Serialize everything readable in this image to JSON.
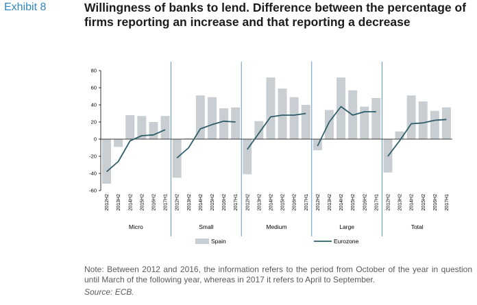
{
  "header": {
    "exhibit": "Exhibit 8",
    "title": "Willingness of banks to lend. Difference between the percentage of firms reporting an increase and that reporting a decrease"
  },
  "footer": {
    "note": "Note: Between 2012 and 2016, the information refers to the period from October of the year in question until March of the following year, whereas in 2017 it refers to April to September.",
    "source": "Source: ECB."
  },
  "colors": {
    "bar": "#c9ced2",
    "line": "#2d5d69",
    "divider": "#3a7dbd",
    "axis": "#000000"
  },
  "chart_data": {
    "type": "bar",
    "title": "",
    "xlabel": "",
    "ylabel": "",
    "ylim": [
      -60,
      80
    ],
    "yticks": [
      -60,
      -40,
      -20,
      0,
      20,
      40,
      60,
      80
    ],
    "grid": false,
    "legend_position": "bottom",
    "categories": [
      "2012H2",
      "2013H2",
      "2014H2",
      "2015H2",
      "2016H2",
      "2017H1"
    ],
    "groups": [
      "Micro",
      "Small",
      "Medium",
      "Large",
      "Total"
    ],
    "series": [
      {
        "name": "Spain",
        "kind": "bar",
        "values": [
          [
            -52,
            -9,
            28,
            27,
            20,
            27
          ],
          [
            -45,
            1,
            51,
            49,
            36,
            37
          ],
          [
            -41,
            21,
            72,
            59,
            49,
            40
          ],
          [
            -13,
            34,
            72,
            57,
            38,
            48
          ],
          [
            -39,
            9,
            51,
            44,
            33,
            37
          ]
        ]
      },
      {
        "name": "Eurozone",
        "kind": "line",
        "values": [
          [
            -38,
            -26,
            -2,
            4,
            5,
            11
          ],
          [
            -22,
            -10,
            12,
            17,
            21,
            20
          ],
          [
            -12,
            7,
            26,
            28,
            28,
            30
          ],
          [
            -8,
            20,
            38,
            28,
            32,
            32
          ],
          [
            -20,
            -2,
            18,
            19,
            22,
            23
          ]
        ]
      }
    ]
  }
}
